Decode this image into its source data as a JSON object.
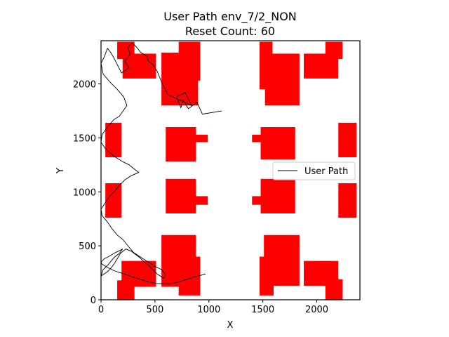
{
  "chart_data": {
    "type": "line",
    "title": "User Path env_7/2_NON",
    "subtitle": "Reset Count: 60",
    "xlabel": "X",
    "ylabel": "Y",
    "xlim": [
      0,
      2400
    ],
    "ylim": [
      0,
      2400
    ],
    "xticks": [
      0,
      500,
      1000,
      1500,
      2000
    ],
    "yticks": [
      0,
      500,
      1000,
      1500,
      2000
    ],
    "grid": false,
    "legend": {
      "placement": "center-right",
      "entries": [
        "User Path"
      ]
    },
    "colors": {
      "obstacle": "#ff0000",
      "path": "#000000"
    },
    "obstacles": [
      {
        "x0": 150,
        "x1": 310,
        "y0": 2230,
        "y1": 2390
      },
      {
        "x0": 200,
        "x1": 510,
        "y0": 2050,
        "y1": 2280
      },
      {
        "x0": 560,
        "x1": 900,
        "y0": 1800,
        "y1": 2290
      },
      {
        "x0": 720,
        "x1": 920,
        "y0": 2030,
        "y1": 2390
      },
      {
        "x0": 1470,
        "x1": 1590,
        "y0": 1950,
        "y1": 2390
      },
      {
        "x0": 1520,
        "x1": 1840,
        "y0": 1800,
        "y1": 2280
      },
      {
        "x0": 1880,
        "x1": 2200,
        "y0": 2050,
        "y1": 2280
      },
      {
        "x0": 2080,
        "x1": 2240,
        "y0": 2230,
        "y1": 2390
      },
      {
        "x0": 40,
        "x1": 190,
        "y0": 1320,
        "y1": 1640
      },
      {
        "x0": 600,
        "x1": 880,
        "y0": 1280,
        "y1": 1600
      },
      {
        "x0": 840,
        "x1": 990,
        "y0": 1460,
        "y1": 1530
      },
      {
        "x0": 1400,
        "x1": 1500,
        "y0": 1460,
        "y1": 1530
      },
      {
        "x0": 1480,
        "x1": 1800,
        "y0": 1300,
        "y1": 1600
      },
      {
        "x0": 2200,
        "x1": 2370,
        "y0": 1320,
        "y1": 1640
      },
      {
        "x0": 40,
        "x1": 190,
        "y0": 760,
        "y1": 1080
      },
      {
        "x0": 600,
        "x1": 880,
        "y0": 800,
        "y1": 1120
      },
      {
        "x0": 840,
        "x1": 990,
        "y0": 880,
        "y1": 960
      },
      {
        "x0": 1400,
        "x1": 1500,
        "y0": 880,
        "y1": 960
      },
      {
        "x0": 1480,
        "x1": 1800,
        "y0": 800,
        "y1": 1120
      },
      {
        "x0": 2200,
        "x1": 2370,
        "y0": 760,
        "y1": 1080
      },
      {
        "x0": 150,
        "x1": 310,
        "y0": 0,
        "y1": 180
      },
      {
        "x0": 190,
        "x1": 510,
        "y0": 120,
        "y1": 360
      },
      {
        "x0": 560,
        "x1": 880,
        "y0": 120,
        "y1": 600
      },
      {
        "x0": 720,
        "x1": 920,
        "y0": 40,
        "y1": 400
      },
      {
        "x0": 1470,
        "x1": 1600,
        "y0": 40,
        "y1": 400
      },
      {
        "x0": 1510,
        "x1": 1840,
        "y0": 130,
        "y1": 600
      },
      {
        "x0": 1880,
        "x1": 2200,
        "y0": 130,
        "y1": 360
      },
      {
        "x0": 2080,
        "x1": 2240,
        "y0": 0,
        "y1": 190
      }
    ],
    "series": [
      {
        "name": "User Path",
        "x": [
          1120,
          940,
          890,
          810,
          760,
          740,
          700,
          780,
          840,
          620,
          560,
          520,
          480,
          440,
          420,
          370,
          330,
          290,
          250,
          270,
          220,
          260,
          190,
          150,
          120,
          90,
          60,
          30,
          0,
          20,
          90,
          150,
          210,
          240,
          170,
          120,
          60,
          10,
          0,
          40,
          120,
          200,
          260,
          310,
          350,
          280,
          220,
          170,
          130,
          80,
          40,
          0,
          10,
          60,
          100,
          150,
          200,
          250,
          300,
          360,
          420,
          470,
          500,
          560,
          600,
          580,
          520,
          470,
          440,
          400,
          360,
          320,
          280,
          230,
          180,
          150,
          120,
          90,
          60,
          30,
          0,
          20,
          70,
          120,
          170,
          200,
          160,
          120,
          70,
          30,
          0,
          10,
          60,
          120,
          180,
          240,
          300,
          360,
          400,
          430,
          470,
          510,
          560,
          600,
          640,
          700,
          740,
          760,
          800,
          830,
          860,
          900,
          940,
          970
        ],
        "y": [
          1750,
          1720,
          1830,
          1770,
          1850,
          1780,
          1880,
          1920,
          1800,
          1900,
          2020,
          2120,
          2180,
          2210,
          2260,
          2290,
          2340,
          2380,
          2340,
          2270,
          2210,
          2150,
          2100,
          2180,
          2240,
          2290,
          2330,
          2250,
          2190,
          2090,
          2010,
          1950,
          1880,
          1800,
          1700,
          1670,
          1600,
          1530,
          1460,
          1400,
          1330,
          1280,
          1250,
          1210,
          1180,
          1150,
          1110,
          1060,
          1010,
          960,
          900,
          840,
          780,
          720,
          660,
          600,
          560,
          500,
          440,
          400,
          360,
          330,
          310,
          280,
          230,
          200,
          240,
          290,
          320,
          350,
          390,
          420,
          450,
          470,
          430,
          380,
          330,
          290,
          260,
          240,
          220,
          280,
          330,
          390,
          430,
          470,
          450,
          430,
          400,
          380,
          350,
          330,
          300,
          270,
          250,
          230,
          210,
          190,
          180,
          170,
          160,
          150,
          150,
          150,
          150,
          160,
          170,
          180,
          190,
          200,
          210,
          220,
          230,
          240
        ]
      }
    ]
  }
}
